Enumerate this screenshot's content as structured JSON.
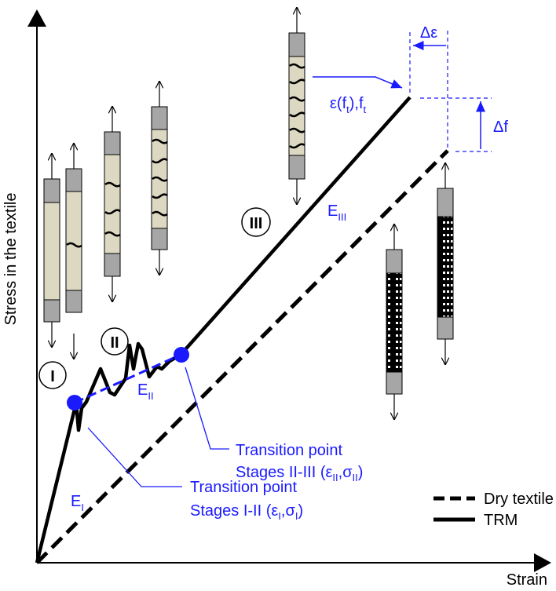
{
  "axes": {
    "y_label": "Stress in the textile",
    "x_label": "Strain"
  },
  "stages": [
    "I",
    "II",
    "III"
  ],
  "moduli": [
    [
      "E",
      "I"
    ],
    [
      "E",
      "II"
    ],
    [
      "E",
      "III"
    ]
  ],
  "ultimate": [
    "ε(f",
    "t",
    "),f",
    "t"
  ],
  "increments": {
    "strain": "Δε",
    "stress": "Δf"
  },
  "transitions": [
    {
      "title": "Transition point",
      "detail": [
        "Stages I-II (ε",
        "I",
        ",σ",
        "I",
        ")"
      ]
    },
    {
      "title": "Transition point",
      "detail": [
        "Stages II-III (ε",
        "II",
        ",σ",
        "II",
        ")"
      ]
    }
  ],
  "legend": [
    "Dry textile",
    "TRM"
  ]
}
